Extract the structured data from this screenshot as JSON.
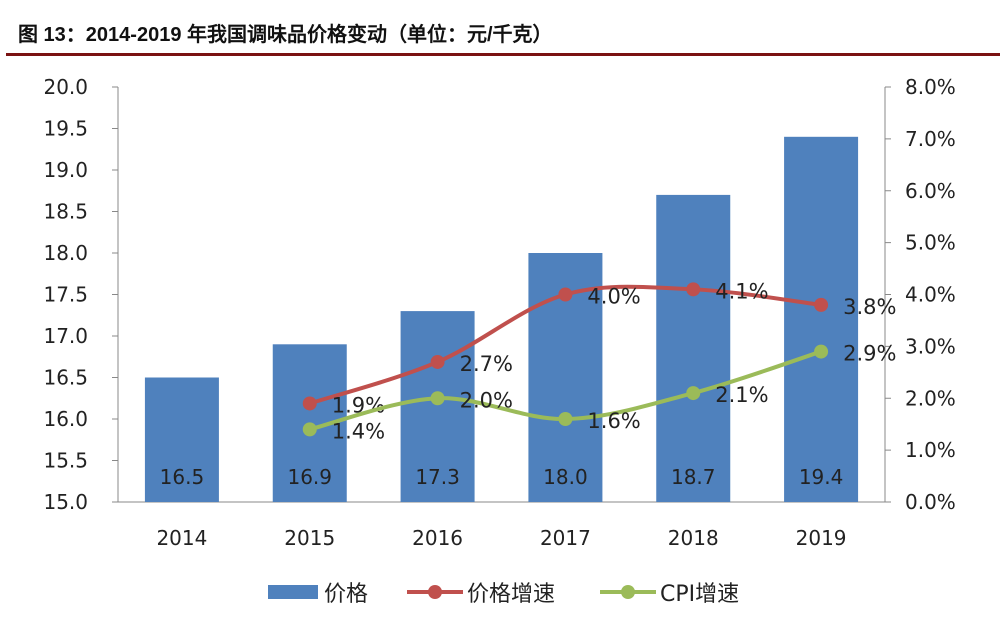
{
  "title": "图 13：2014-2019 年我国调味品价格变动（单位：元/千克）",
  "chart_data": {
    "type": "bar",
    "categories": [
      "2014",
      "2015",
      "2016",
      "2017",
      "2018",
      "2019"
    ],
    "series": [
      {
        "name": "价格",
        "type": "bar",
        "axis": "left",
        "color": "#4f81bd",
        "values": [
          16.5,
          16.9,
          17.3,
          18.0,
          18.7,
          19.4
        ],
        "labels": [
          "16.5",
          "16.9",
          "17.3",
          "18.0",
          "18.7",
          "19.4"
        ]
      },
      {
        "name": "价格增速",
        "type": "line",
        "axis": "right",
        "color": "#c0504d",
        "values": [
          null,
          1.9,
          2.7,
          4.0,
          4.1,
          3.8
        ],
        "labels": [
          null,
          "1.9%",
          "2.7%",
          "4.0%",
          "4.1%",
          "3.8%"
        ]
      },
      {
        "name": "CPI增速",
        "type": "line",
        "axis": "right",
        "color": "#9bbb59",
        "values": [
          null,
          1.4,
          2.0,
          1.6,
          2.1,
          2.9
        ],
        "labels": [
          null,
          "1.4%",
          "2.0%",
          "1.6%",
          "2.1%",
          "2.9%"
        ]
      }
    ],
    "ylim": [
      15.0,
      20.0
    ],
    "y2lim": [
      0,
      8
    ],
    "yticks": [
      "15.0",
      "15.5",
      "16.0",
      "16.5",
      "17.0",
      "17.5",
      "18.0",
      "18.5",
      "19.0",
      "19.5",
      "20.0"
    ],
    "y2ticks": [
      "0.0%",
      "1.0%",
      "2.0%",
      "3.0%",
      "4.0%",
      "5.0%",
      "6.0%",
      "7.0%",
      "8.0%"
    ],
    "legend": "bottom",
    "grid": false
  }
}
